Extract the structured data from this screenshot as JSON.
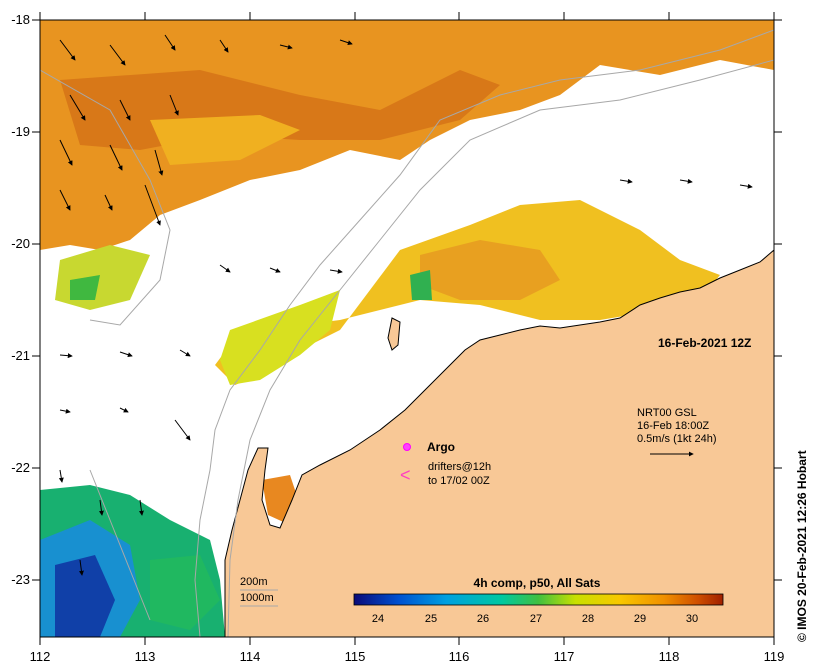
{
  "map": {
    "x_ticks": [
      "112",
      "113",
      "114",
      "115",
      "116",
      "117",
      "118",
      "119"
    ],
    "y_ticks": [
      "-18",
      "-19",
      "-20",
      "-21",
      "-22",
      "-23"
    ],
    "date_label": "16-Feb-2021 12Z",
    "credit": "© IMOS 20-Feb-2021 12:26 Hobart",
    "legend": {
      "argo": "Argo",
      "drifters_line1": "drifters@12h",
      "drifters_line2": "to 17/02 00Z",
      "drifters_symbol": "<"
    },
    "current_info": {
      "line1": "NRT00 GSL",
      "line2": "16-Feb 18:00Z",
      "line3": "0.5m/s (1kt 24h)"
    },
    "isobaths": {
      "shallow": "200m",
      "deep": "1000m"
    },
    "colorbar": {
      "title": "4h comp, p50, All Sats",
      "ticks": [
        "24",
        "25",
        "26",
        "27",
        "28",
        "29",
        "30"
      ],
      "colors": [
        "#0a0a78",
        "#0050d0",
        "#00a0e0",
        "#00c8a0",
        "#40c040",
        "#c8e000",
        "#f8c800",
        "#f09000",
        "#d05000",
        "#a02000"
      ]
    },
    "colors": {
      "land": "#f8c896",
      "background": "#ffffff",
      "coast": "#000000"
    }
  }
}
